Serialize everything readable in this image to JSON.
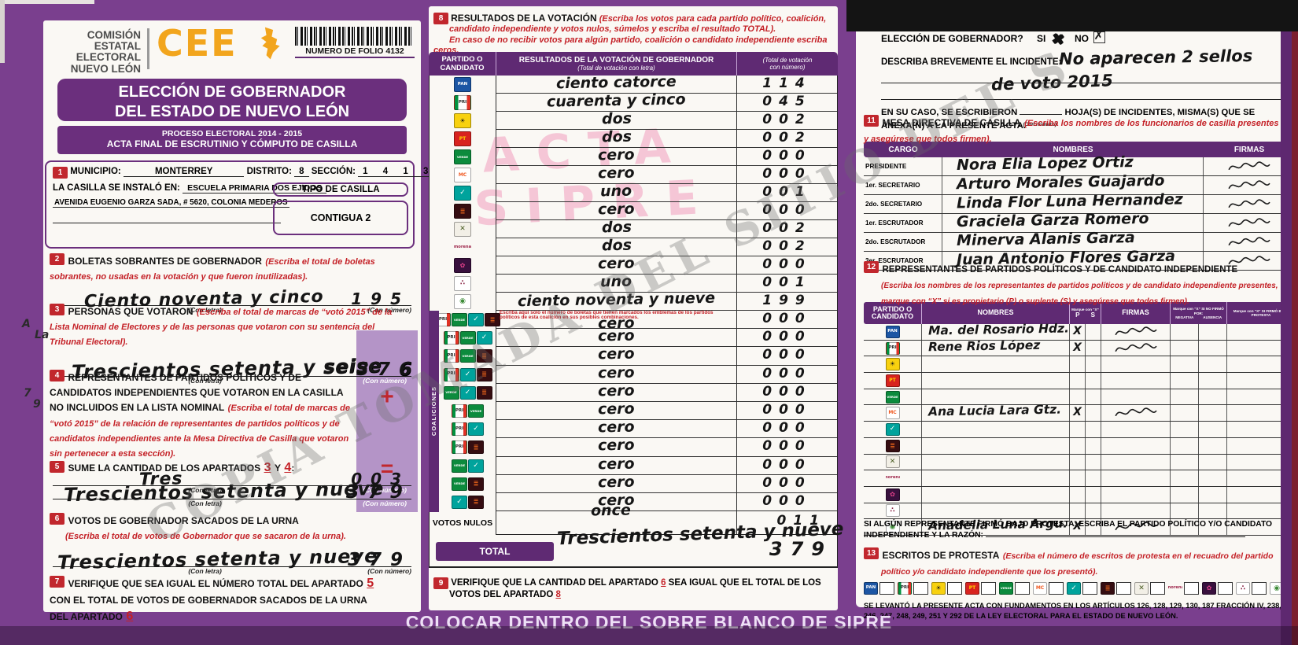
{
  "colors": {
    "purple": "#6b2f7d",
    "purple_dark": "#5f2a73",
    "red_badge": "#c1272d",
    "red_text": "#c42127",
    "orange": "#f2a51d",
    "highlight_band": "#b494c7",
    "stamp_pink": "#ef94b8"
  },
  "watermarks": {
    "diagonal": "COPIA TOMADA DEL SITIO DEL S",
    "stamp_line1": "ACTA",
    "stamp_line2": "SIPRE"
  },
  "page": {
    "bottom_bar": "COLOCAR DENTRO DEL SOBRE BLANCO DE SIPRE"
  },
  "header": {
    "org_lines": [
      "COMISIÓN",
      "ESTATAL",
      "ELECTORAL",
      "NUEVO LEÓN"
    ],
    "logo_text": "CEE",
    "folio": "NUMERO DE FOLIO 4132",
    "title_line1": "ELECCIÓN DE GOBERNADOR",
    "title_line2": "DEL ESTADO DE NUEVO LEÓN",
    "subtitle_line1": "PROCESO ELECTORAL  2014 - 2015",
    "subtitle_line2": "ACTA FINAL DE ESCRUTINIO Y CÓMPUTO DE CASILLA"
  },
  "labels": {
    "con_letra": "(Con letra)",
    "con_numero": "(Con número)"
  },
  "s1": {
    "num": "1",
    "municipio_label": "MUNICIPIO:",
    "municipio": "MONTERREY",
    "distrito_label": "DISTRITO:",
    "distrito": "8",
    "seccion_label": "SECCIÓN:",
    "seccion": "1 4 1 3",
    "casilla_label": "LA CASILLA SE INSTALÓ EN:",
    "casilla": "ESCUELA PRIMARIA DOS EJÍDOS",
    "direccion": "AVENIDA EUGENIO GARZA SADA, # 5620, COLONIA MEDEROS",
    "tipo_label": "TIPO DE CASILLA",
    "tipo": "CONTIGUA 2"
  },
  "s2": {
    "num": "2",
    "title": "BOLETAS SOBRANTES DE GOBERNADOR",
    "instr": "(Escriba el total de boletas sobrantes, no usadas en la votación y que fueron inutilizadas).",
    "letra": "Ciento noventa y cinco",
    "numero": "195"
  },
  "s3": {
    "num": "3",
    "title": "PERSONAS QUE VOTARON",
    "instr": "(Escriba el total de marcas de “votó 2015” de la Lista Nominal de Electores y de las personas que votaron con su sentencia del Tribunal Electoral).",
    "letra": "Trescientos setenta y",
    "letra_fix": "seise",
    "numero": "37",
    "numero_fix": "6"
  },
  "s4": {
    "num": "4",
    "title": "REPRESENTANTES DE PARTIDOS POLÍTICOS Y DE CANDIDATOS INDEPENDIENTES QUE VOTARON EN LA CASILLA NO INCLUIDOS EN LA LISTA NOMINAL",
    "instr": "(Escriba el total de marcas de “votó 2015” de la relación de representantes de partidos políticos y de candidatos independientes ante la Mesa Directiva de Casilla que votaron sin pertenecer a esta sección).",
    "letra": "Tres",
    "numero": "003",
    "plus_sign": "+"
  },
  "s5": {
    "num": "5",
    "pre": "SUME LA CANTIDAD DE LOS APARTADOS",
    "ref1": "3",
    "conj": "Y",
    "ref2": "4",
    "colon": ":",
    "letra": "Trescientos setenta y nueve",
    "numero": "379",
    "equals_sign": "="
  },
  "s6": {
    "num": "6",
    "title": "VOTOS DE GOBERNADOR SACADOS DE LA URNA",
    "instr": "(Escriba el total de votos de Gobernador que se sacaron de la urna).",
    "letra": "Trescientos setenta y nueve",
    "numero": "379"
  },
  "s7": {
    "num": "7",
    "t1": "VERIFIQUE QUE SEA IGUAL EL NÚMERO TOTAL DEL APARTADO",
    "r1": "5",
    "t2": "CON EL TOTAL DE VOTOS DE GOBERNADOR SACADOS DE LA URNA DEL APARTADO",
    "r2": "6"
  },
  "margin_notes": [
    {
      "text": "A"
    },
    {
      "text": "La"
    },
    {
      "text": "7"
    },
    {
      "text": "9"
    }
  ],
  "party_logos": {
    "pan": {
      "label": "PAN",
      "bg": "#1c56a4",
      "fg": "#ffffff",
      "fs": "5.5px"
    },
    "pri": {
      "label": "PRI",
      "bg": "tricolor",
      "fg": "#2b2b2b",
      "fs": "5.5px"
    },
    "prd": {
      "label": "☀",
      "bg": "#f8d10f",
      "fg": "#1a1a1a",
      "fs": "8px"
    },
    "pt": {
      "label": "PT",
      "bg": "#d8231f",
      "fg": "#ffd400",
      "fs": "6px"
    },
    "verde": {
      "label": "VERDE",
      "bg": "#0c8b3d",
      "fg": "#ffffff",
      "fs": "3.8px"
    },
    "mc": {
      "label": "MC",
      "bg": "#ffffff",
      "fg": "#f05a22",
      "fs": "6px"
    },
    "alianza": {
      "label": "✓",
      "bg": "#00a39c",
      "fg": "#ffffff",
      "fs": "9px"
    },
    "democrata": {
      "label": "≣",
      "bg": "#350d11",
      "fg": "#e8641b",
      "fs": "8px"
    },
    "cruzada": {
      "label": "✕",
      "bg": "#f2efe6",
      "fg": "#4a5d23",
      "fs": "9px"
    },
    "morena": {
      "label": "morena",
      "bg": "none",
      "fg": "#9d2449",
      "fs": "5.2px"
    },
    "humanista": {
      "label": "✿",
      "bg": "#38103d",
      "fg": "#e0408a",
      "fs": "8px"
    },
    "encuentro": {
      "label": "∴",
      "bg": "#ffffff",
      "fg": "#8c2a4a",
      "fs": "9px"
    },
    "independiente": {
      "label": "◉",
      "bg": "#ffffff",
      "fg": "#3d8b37",
      "fs": "9px"
    }
  },
  "s8": {
    "num": "8",
    "title": "RESULTADOS DE LA VOTACIÓN",
    "instr1": "(Escriba los votos para cada partido político, coalición,",
    "instr2": "candidato independiente y votos nulos, súmelos y escriba el resultado TOTAL).",
    "instr3": "En caso de no recibir votos para algún partido, coalición o candidato independiente escriba ceros.",
    "col_party1": "PARTIDO O",
    "col_party2": "CANDIDATO",
    "col_result": "RESULTADOS DE LA VOTACIÓN DE GOBERNADOR",
    "col_result_sub": "(Total de votación con letra)",
    "col_num1": "(Total de votación",
    "col_num2": "con número)",
    "rows": [
      {
        "party": "pan",
        "letra": "ciento catorce",
        "num": "114"
      },
      {
        "party": "pri",
        "letra": "cuarenta y cinco",
        "num": "045"
      },
      {
        "party": "prd",
        "letra": "dos",
        "num": "002"
      },
      {
        "party": "pt",
        "letra": "dos",
        "num": "002"
      },
      {
        "party": "verde",
        "letra": "cero",
        "num": "000"
      },
      {
        "party": "mc",
        "letra": "cero",
        "num": "000"
      },
      {
        "party": "alianza",
        "letra": "uno",
        "num": "001"
      },
      {
        "party": "democrata",
        "letra": "cero",
        "num": "000"
      },
      {
        "party": "cruzada",
        "letra": "dos",
        "num": "002"
      },
      {
        "party": "morena",
        "letra": "dos",
        "num": "002"
      },
      {
        "party": "humanista",
        "letra": "cero",
        "num": "000"
      },
      {
        "party": "encuentro",
        "letra": "uno",
        "num": "001"
      },
      {
        "party": "independiente",
        "letra": "ciento noventa y nueve",
        "num": "199"
      }
    ],
    "coaliciones_label": "COALICIONES",
    "coalition_note": "Escriba aquí solo el número de boletas que tienen marcados los emblemas de los partidos políticos de esta coalición en sus posibles combinaciones.",
    "coalition_rows": [
      {
        "logos": [
          "pri",
          "verde",
          "alianza",
          "democrata"
        ],
        "letra": "cero",
        "num": "000"
      },
      {
        "logos": [
          "pri",
          "verde",
          "alianza"
        ],
        "letra": "cero",
        "num": "000"
      },
      {
        "logos": [
          "pri",
          "verde",
          "democrata"
        ],
        "letra": "cero",
        "num": "000"
      },
      {
        "logos": [
          "pri",
          "alianza",
          "democrata"
        ],
        "letra": "cero",
        "num": "000"
      },
      {
        "logos": [
          "verde",
          "alianza",
          "democrata"
        ],
        "letra": "cero",
        "num": "000"
      },
      {
        "logos": [
          "pri",
          "verde"
        ],
        "letra": "cero",
        "num": "000"
      },
      {
        "logos": [
          "pri",
          "alianza"
        ],
        "letra": "cero",
        "num": "000"
      },
      {
        "logos": [
          "pri",
          "democrata"
        ],
        "letra": "cero",
        "num": "000"
      },
      {
        "logos": [
          "verde",
          "alianza"
        ],
        "letra": "cero",
        "num": "000"
      },
      {
        "logos": [
          "verde",
          "democrata"
        ],
        "letra": "cero",
        "num": "000"
      },
      {
        "logos": [
          "alianza",
          "democrata"
        ],
        "letra": "cero",
        "num": "000"
      }
    ],
    "votos_nulos_label": "VOTOS NULOS",
    "votos_nulos": {
      "letra": "once",
      "numero": "011"
    },
    "total_label": "TOTAL",
    "total": {
      "letra": "Trescientos setenta y nueve",
      "numero": "379"
    }
  },
  "s9": {
    "num": "9",
    "t1": "VERIFIQUE QUE LA CANTIDAD DEL APARTADO",
    "r1": "6",
    "t2": "SEA IGUAL QUE EL TOTAL DE LOS",
    "t3": "VOTOS DEL APARTADO",
    "r2": "8"
  },
  "s10": {
    "num": "10",
    "title_hidden": "¿HUBO INCIDENTES DURANTE EL",
    "line2": "ELECCIÓN DE GOBERNADOR?",
    "si": "SI",
    "no": "NO",
    "si_mark": "✖",
    "no_mark": "✗",
    "desc_label": "DESCRIBA BREVEMENTE EL INCIDENTE:",
    "incident1": "No aparecen 2 sellos",
    "incident2": "de voto 2015",
    "caso1": "EN SU CASO, SE ESCRIBIERON",
    "caso_micro": "(Con número)",
    "caso2": "HOJA(S) DE INCIDENTES, MISMA(S) QUE SE",
    "caso3": "ANEXA(N) A LA PRESENTE ACTA."
  },
  "s11": {
    "num": "11",
    "title": "MESA DIRECTIVA DE CASILLA",
    "instr": "(Escriba los nombres de los funcionarios de casilla presentes y asegúrese que todos firmen).",
    "h_cargo": "CARGO",
    "h_nombres": "NOMBRES",
    "h_firmas": "FIRMAS",
    "rows": [
      {
        "cargo": "PRESIDENTE",
        "nombre": "Nora Elia Lopez Ortiz",
        "signed": true
      },
      {
        "cargo": "1er. SECRETARIO",
        "nombre": "Arturo Morales Guajardo",
        "signed": true
      },
      {
        "cargo": "2do. SECRETARIO",
        "nombre": "Linda Flor Luna Hernandez",
        "signed": true
      },
      {
        "cargo": "1er. ESCRUTADOR",
        "nombre": "Graciela Garza Romero",
        "signed": true
      },
      {
        "cargo": "2do. ESCRUTADOR",
        "nombre": "Minerva Alanis Garza",
        "signed": true
      },
      {
        "cargo": "3er. ESCRUTADOR",
        "nombre": "Juan Antonio Flores Garza",
        "signed": true
      }
    ]
  },
  "s12": {
    "num": "12",
    "title": "REPRESENTANTES DE PARTIDOS POLÍTICOS Y DE CANDIDATO INDEPENDIENTE",
    "instr1": "(Escriba los nombres de los representantes de partidos políticos y de candidato independiente presentes,",
    "instr2": "marque con “X” si es propietario (P) o suplente (S) y asegúrese que todos firmen).",
    "h_party1": "PARTIDO O",
    "h_party2": "CANDIDATO",
    "h_nombres": "NOMBRES",
    "h_marque": "Marque con “X”",
    "h_p": "P",
    "h_s": "S",
    "h_firmas": "FIRMAS",
    "h_nofirmo": "Marque con “X” SI NO FIRMÓ POR:",
    "h_negativa": "NEGATIVA",
    "h_ausencia": "AUSENCIA",
    "h_protesta": "Marque con “X” SI FIRMÓ BAJO PROTESTA",
    "rows": [
      {
        "party": "pan",
        "nombre": "Ma. del Rosario Hdz.",
        "p": "X",
        "signed": true
      },
      {
        "party": "pri",
        "nombre": "Rene Rios López",
        "p": "X",
        "signed": true
      },
      {
        "party": "prd",
        "nombre": "",
        "p": "",
        "signed": false
      },
      {
        "party": "pt",
        "nombre": "",
        "p": "",
        "signed": false
      },
      {
        "party": "verde",
        "nombre": "",
        "p": "",
        "signed": false
      },
      {
        "party": "mc",
        "nombre": "Ana Lucia Lara Gtz.",
        "p": "X",
        "signed": true
      },
      {
        "party": "alianza",
        "nombre": "",
        "p": "",
        "signed": false
      },
      {
        "party": "democrata",
        "nombre": "",
        "p": "",
        "signed": false
      },
      {
        "party": "cruzada",
        "nombre": "",
        "p": "",
        "signed": false
      },
      {
        "party": "morena",
        "nombre": "",
        "p": "",
        "signed": false
      },
      {
        "party": "humanista",
        "nombre": "",
        "p": "",
        "signed": false
      },
      {
        "party": "encuentro",
        "nombre": "",
        "p": "",
        "signed": false
      },
      {
        "party": "independiente",
        "nombre": "Anadelia Luna Argu.",
        "p": "X",
        "signed": true
      }
    ],
    "protest_line1": "SI ALGÚN REPRESENTANTE FIRMÓ BAJO PROTESTA, ESCRIBA EL PARTIDO POLÍTICO Y/O CANDIDATO",
    "protest_line2": "INDEPENDIENTE Y LA RAZÓN:"
  },
  "s13": {
    "num": "13",
    "title": "ESCRITOS DE PROTESTA",
    "instr1": "(Escriba el número de escritos de protesta en el recuadro del partido",
    "instr2": "político y/o candidato independiente que los presentó).",
    "parties": [
      "pan",
      "pri",
      "prd",
      "pt",
      "verde",
      "mc",
      "alianza",
      "democrata",
      "cruzada",
      "morena",
      "humanista",
      "encuentro",
      "independiente"
    ],
    "footer1": "SE LEVANTÓ LA PRESENTE ACTA CON FUNDAMENTOS EN LOS ARTÍCULOS 126, 128, 129, 130, 187 FRACCIÓN IV, 238,",
    "footer2": "246, 247, 248, 249, 251 Y 292 DE LA LEY ELECTORAL PARA EL ESTADO DE NUEVO LEÓN."
  }
}
